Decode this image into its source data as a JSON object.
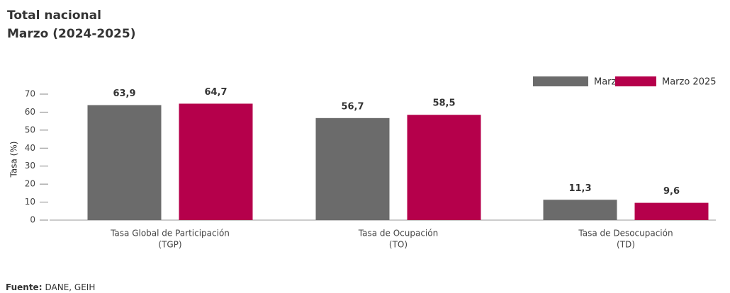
{
  "chart_data": {
    "type": "bar",
    "title": "Total nacional",
    "subtitle": "Marzo (2024-2025)",
    "y_label": "Tasa (%)",
    "categories": [
      [
        "Tasa Global de Participación",
        "(TGP)"
      ],
      [
        "Tasa de Ocupación",
        "(TO)"
      ],
      [
        "Tasa de Desocupación",
        "(TD)"
      ]
    ],
    "series": [
      {
        "name": "Marzo 2024",
        "color": "#6b6b6b",
        "values": [
          63.9,
          56.7,
          11.3
        ],
        "value_labels": [
          "63,9",
          "56,7",
          "11,3"
        ]
      },
      {
        "name": "Marzo 2025",
        "color": "#b5004b",
        "values": [
          64.7,
          58.5,
          9.6
        ],
        "value_labels": [
          "64,7",
          "58,5",
          "9,6"
        ]
      }
    ],
    "ylim": [
      0,
      70
    ],
    "yticks": [
      0,
      10,
      20,
      30,
      40,
      50,
      60,
      70
    ],
    "grid": false,
    "legend": "top-right",
    "source_label": "Fuente:",
    "source": "DANE, GEIH"
  }
}
